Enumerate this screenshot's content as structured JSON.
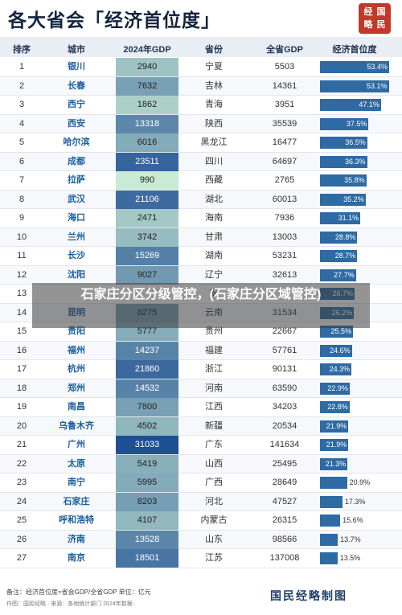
{
  "title": "各大省会「经济首位度」",
  "seal": [
    "经",
    "国",
    "略",
    "民"
  ],
  "headers": {
    "rank": "排序",
    "city": "城市",
    "gdp": "2024年GDP",
    "province": "省份",
    "province_gdp": "全省GDP",
    "primacy": "经济首位度"
  },
  "colors": {
    "bar": "#2e6aa3",
    "city_text": "#1b5fa0",
    "gdp_low": "#c9ead3",
    "gdp_high": "#1f4f93"
  },
  "chart_data": {
    "type": "table",
    "rows": [
      {
        "rank": "1",
        "city": "银川",
        "gdp": 2940,
        "province": "宁夏",
        "province_gdp": 5503,
        "primacy": 53.4
      },
      {
        "rank": "2",
        "city": "长春",
        "gdp": 7632,
        "province": "吉林",
        "province_gdp": 14361,
        "primacy": 53.1
      },
      {
        "rank": "3",
        "city": "西宁",
        "gdp": 1862,
        "province": "青海",
        "province_gdp": 3951,
        "primacy": 47.1
      },
      {
        "rank": "4",
        "city": "西安",
        "gdp": 13318,
        "province": "陕西",
        "province_gdp": 35539,
        "primacy": 37.5
      },
      {
        "rank": "5",
        "city": "哈尔滨",
        "gdp": 6016,
        "province": "黑龙江",
        "province_gdp": 16477,
        "primacy": 36.5
      },
      {
        "rank": "6",
        "city": "成都",
        "gdp": 23511,
        "province": "四川",
        "province_gdp": 64697,
        "primacy": 36.3
      },
      {
        "rank": "7",
        "city": "拉萨",
        "gdp": 990,
        "province": "西藏",
        "province_gdp": 2765,
        "primacy": 35.8
      },
      {
        "rank": "8",
        "city": "武汉",
        "gdp": 21106,
        "province": "湖北",
        "province_gdp": 60013,
        "primacy": 35.2
      },
      {
        "rank": "9",
        "city": "海口",
        "gdp": 2471,
        "province": "海南",
        "province_gdp": 7936,
        "primacy": 31.1
      },
      {
        "rank": "10",
        "city": "兰州",
        "gdp": 3742,
        "province": "甘肃",
        "province_gdp": 13003,
        "primacy": 28.8
      },
      {
        "rank": "11",
        "city": "长沙",
        "gdp": 15269,
        "province": "湖南",
        "province_gdp": 53231,
        "primacy": 28.7
      },
      {
        "rank": "12",
        "city": "沈阳",
        "gdp": 9027,
        "province": "辽宁",
        "province_gdp": 32613,
        "primacy": 27.7
      },
      {
        "rank": "13",
        "city": "",
        "gdp": null,
        "province": "安",
        "province_gdp": null,
        "primacy": 26.7
      },
      {
        "rank": "14",
        "city": "昆明",
        "gdp": 8275,
        "province": "云南",
        "province_gdp": 31534,
        "primacy": 26.2
      },
      {
        "rank": "15",
        "city": "贵阳",
        "gdp": 5777,
        "province": "贵州",
        "province_gdp": 22667,
        "primacy": 25.5
      },
      {
        "rank": "16",
        "city": "福州",
        "gdp": 14237,
        "province": "福建",
        "province_gdp": 57761,
        "primacy": 24.6
      },
      {
        "rank": "17",
        "city": "杭州",
        "gdp": 21860,
        "province": "浙江",
        "province_gdp": 90131,
        "primacy": 24.3
      },
      {
        "rank": "18",
        "city": "郑州",
        "gdp": 14532,
        "province": "河南",
        "province_gdp": 63590,
        "primacy": 22.9
      },
      {
        "rank": "19",
        "city": "南昌",
        "gdp": 7800,
        "province": "江西",
        "province_gdp": 34203,
        "primacy": 22.8
      },
      {
        "rank": "20",
        "city": "乌鲁木齐",
        "gdp": 4502,
        "province": "新疆",
        "province_gdp": 20534,
        "primacy": 21.9
      },
      {
        "rank": "21",
        "city": "广州",
        "gdp": 31033,
        "province": "广东",
        "province_gdp": 141634,
        "primacy": 21.9
      },
      {
        "rank": "22",
        "city": "太原",
        "gdp": 5419,
        "province": "山西",
        "province_gdp": 25495,
        "primacy": 21.3
      },
      {
        "rank": "23",
        "city": "南宁",
        "gdp": 5995,
        "province": "广西",
        "province_gdp": 28649,
        "primacy": 20.9
      },
      {
        "rank": "24",
        "city": "石家庄",
        "gdp": 8203,
        "province": "河北",
        "province_gdp": 47527,
        "primacy": 17.3
      },
      {
        "rank": "25",
        "city": "呼和浩特",
        "gdp": 4107,
        "province": "内蒙古",
        "province_gdp": 26315,
        "primacy": 15.6
      },
      {
        "rank": "26",
        "city": "济南",
        "gdp": 13528,
        "province": "山东",
        "province_gdp": 98566,
        "primacy": 13.7
      },
      {
        "rank": "27",
        "city": "南京",
        "gdp": 18501,
        "province": "江苏",
        "province_gdp": 137008,
        "primacy": 13.5
      }
    ],
    "primacy_max": 53.4
  },
  "footer": {
    "note": "备注：经济首位度=省会GDP/全省GDP 单位：亿元",
    "source": "作图：国民经略 · 来源：各地统计部门 2024年数据 ·"
  },
  "brand": "国民经略制图",
  "overlay": "石家庄分区分级管控，(石家庄分区域管控)"
}
